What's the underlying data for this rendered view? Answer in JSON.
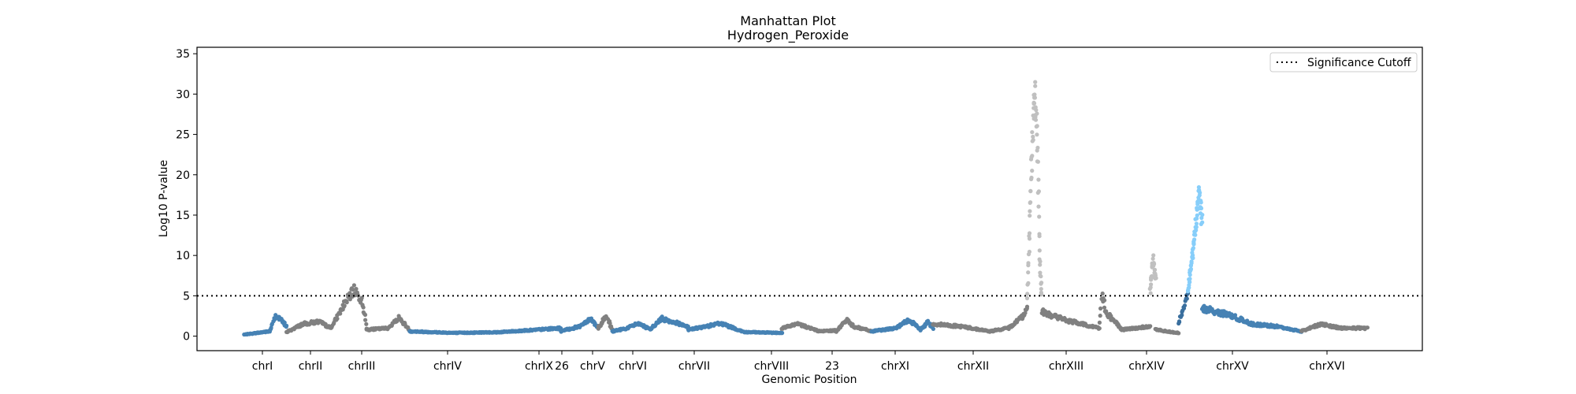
{
  "chart_data": {
    "type": "scatter",
    "title": "Manhattan Plot",
    "subtitle": "Hydrogen_Peroxide",
    "xlabel": "Genomic Position",
    "ylabel": "Log10 P-value",
    "ylim": [
      -1.8,
      35.8
    ],
    "yticks": [
      0,
      5,
      10,
      15,
      20,
      25,
      30,
      35
    ],
    "grid": false,
    "legend": {
      "placement": "top-right",
      "entries": [
        "Significance Cutoff"
      ]
    },
    "significance_cutoff": 5,
    "colors": {
      "blue": "#4682b4",
      "gray": "#808080",
      "sig_gray": "#c0c0c0",
      "sig_blue": "#87cefa",
      "dark_blue": "#3a6f9e"
    },
    "chromosome_labels": [
      "chrI",
      "chrII",
      "chrIII",
      "chrIV",
      "chrIX",
      "26",
      "chrV",
      "chrVI",
      "chrVII",
      "chrVIII",
      "23",
      "chrXI",
      "chrXII",
      "chrXIII",
      "chrXIV",
      "chrXV",
      "chrXVI"
    ],
    "segments": [
      {
        "label": "chrI",
        "color": "blue",
        "range": [
          0.0,
          0.045
        ],
        "profile": [
          [
            0,
            0.2
          ],
          [
            0.6,
            0.6
          ],
          [
            0.75,
            2.6
          ],
          [
            1,
            1.2
          ]
        ]
      },
      {
        "label": "chrII",
        "color": "gray",
        "range": [
          0.045,
          0.13
        ],
        "profile": [
          [
            0,
            0.5
          ],
          [
            0.2,
            1.5
          ],
          [
            0.4,
            1.8
          ],
          [
            0.55,
            1.0
          ],
          [
            0.75,
            4.5
          ],
          [
            0.85,
            5.8
          ],
          [
            0.95,
            4.0
          ],
          [
            1,
            1.0
          ]
        ]
      },
      {
        "label": "chrIII",
        "color": "gray",
        "range": [
          0.13,
          0.175
        ],
        "profile": [
          [
            0,
            0.8
          ],
          [
            0.5,
            1.0
          ],
          [
            0.75,
            2.3
          ],
          [
            1,
            0.8
          ]
        ]
      },
      {
        "label": "chrIV",
        "color": "blue",
        "range": [
          0.175,
          0.335
        ],
        "profile": [
          [
            0,
            0.6
          ],
          [
            0.3,
            0.4
          ],
          [
            0.6,
            0.5
          ],
          [
            0.85,
            0.8
          ],
          [
            1,
            1.0
          ]
        ]
      },
      {
        "label": "chrIX",
        "color": "blue",
        "range": [
          0.335,
          0.375
        ],
        "profile": [
          [
            0,
            0.6
          ],
          [
            0.5,
            1.2
          ],
          [
            0.8,
            2.2
          ],
          [
            1,
            1.0
          ]
        ]
      },
      {
        "label": "26",
        "color": "gray",
        "range": [
          0.375,
          0.39
        ],
        "profile": [
          [
            0,
            1.0
          ],
          [
            0.4,
            2.0
          ],
          [
            0.6,
            2.3
          ],
          [
            1,
            0.8
          ]
        ]
      },
      {
        "label": "chrV",
        "color": "blue",
        "range": [
          0.39,
          0.43
        ],
        "profile": [
          [
            0,
            0.6
          ],
          [
            0.4,
            1.0
          ],
          [
            0.7,
            1.6
          ],
          [
            1,
            0.8
          ]
        ]
      },
      {
        "label": "chrVI",
        "color": "blue",
        "range": [
          0.43,
          0.47
        ],
        "profile": [
          [
            0,
            0.8
          ],
          [
            0.3,
            2.2
          ],
          [
            0.6,
            1.8
          ],
          [
            1,
            1.2
          ]
        ]
      },
      {
        "label": "chrVII",
        "color": "blue",
        "range": [
          0.47,
          0.57
        ],
        "profile": [
          [
            0,
            0.8
          ],
          [
            0.2,
            1.2
          ],
          [
            0.35,
            1.6
          ],
          [
            0.6,
            0.5
          ],
          [
            1,
            0.4
          ]
        ]
      },
      {
        "label": "chrVIII",
        "color": "gray",
        "range": [
          0.57,
          0.627
        ],
        "profile": [
          [
            0,
            1.0
          ],
          [
            0.3,
            1.5
          ],
          [
            0.7,
            0.6
          ],
          [
            1,
            0.7
          ]
        ]
      },
      {
        "label": "23",
        "color": "gray",
        "range": [
          0.627,
          0.665
        ],
        "profile": [
          [
            0,
            0.6
          ],
          [
            0.3,
            2.0
          ],
          [
            0.5,
            1.2
          ],
          [
            1,
            0.6
          ]
        ]
      },
      {
        "label": "chrXI",
        "color": "blue",
        "range": [
          0.665,
          0.73
        ],
        "profile": [
          [
            0,
            0.6
          ],
          [
            0.4,
            1.0
          ],
          [
            0.6,
            2.0
          ],
          [
            0.8,
            0.8
          ],
          [
            0.92,
            1.8
          ],
          [
            1,
            1.0
          ]
        ]
      },
      {
        "label": "chrXII",
        "color": "gray",
        "range": [
          0.73,
          0.83
        ],
        "profile": [
          [
            0,
            1.5
          ],
          [
            0.3,
            1.2
          ],
          [
            0.6,
            0.6
          ],
          [
            0.8,
            1.0
          ],
          [
            0.95,
            2.5
          ],
          [
            1,
            3.5
          ]
        ]
      },
      {
        "label": "chrXIII-peak",
        "color": "sig_gray",
        "range": [
          0.83,
          0.845
        ],
        "profile": [
          [
            0,
            4.5
          ],
          [
            0.3,
            22
          ],
          [
            0.5,
            31
          ],
          [
            0.7,
            24
          ],
          [
            0.85,
            10
          ],
          [
            1,
            5
          ]
        ]
      },
      {
        "label": "chrXIII",
        "color": "gray",
        "range": [
          0.845,
          0.93
        ],
        "profile": [
          [
            0,
            3.0
          ],
          [
            0.3,
            2.0
          ],
          [
            0.5,
            1.5
          ],
          [
            0.72,
            1.0
          ],
          [
            0.76,
            5.5
          ],
          [
            0.8,
            3.0
          ],
          [
            1,
            0.8
          ]
        ]
      },
      {
        "label": "chrXIV",
        "color": "gray",
        "range": [
          0.93,
          0.96
        ],
        "profile": [
          [
            0,
            0.8
          ],
          [
            0.5,
            1.0
          ],
          [
            1,
            1.2
          ]
        ]
      },
      {
        "label": "chrXIV-peak",
        "color": "sig_gray",
        "range": [
          0.96,
          0.966
        ],
        "profile": [
          [
            0,
            5.5
          ],
          [
            0.5,
            9.5
          ],
          [
            1,
            7.0
          ]
        ]
      },
      {
        "label": "chrXIV-tail",
        "color": "gray",
        "range": [
          0.966,
          0.99
        ],
        "profile": [
          [
            0,
            0.8
          ],
          [
            1,
            0.4
          ]
        ]
      },
      {
        "label": "chrXV-rise",
        "color": "dark_blue",
        "range": [
          0.99,
          1.0
        ],
        "profile": [
          [
            0,
            1.5
          ],
          [
            1,
            5.0
          ]
        ]
      },
      {
        "label": "chrXV-peak",
        "color": "sig_blue",
        "range": [
          1.0,
          1.015
        ],
        "profile": [
          [
            0,
            5.5
          ],
          [
            0.4,
            11
          ],
          [
            0.8,
            18
          ],
          [
            1,
            14
          ]
        ]
      },
      {
        "label": "chrXV",
        "color": "blue",
        "range": [
          1.015,
          1.12
        ],
        "profile": [
          [
            0,
            3.5
          ],
          [
            0.3,
            2.5
          ],
          [
            0.5,
            1.5
          ],
          [
            0.75,
            1.2
          ],
          [
            1,
            0.6
          ]
        ]
      },
      {
        "label": "chrXVI",
        "color": "gray",
        "range": [
          1.12,
          1.19
        ],
        "profile": [
          [
            0,
            0.6
          ],
          [
            0.3,
            1.5
          ],
          [
            0.6,
            1.0
          ],
          [
            1,
            1.0
          ]
        ]
      }
    ]
  }
}
